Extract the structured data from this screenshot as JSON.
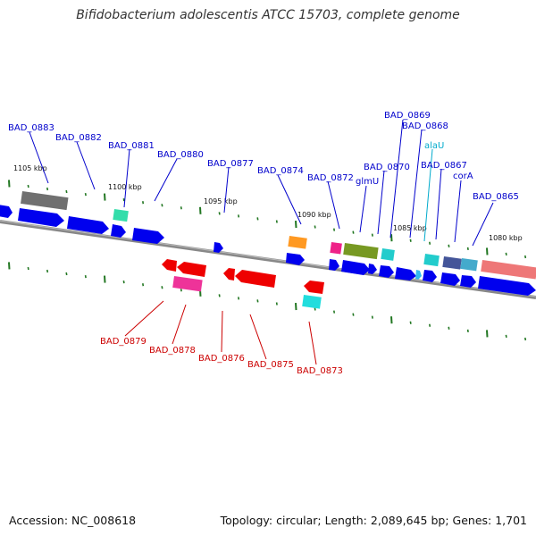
{
  "title": "Bifidobacterium adolescentis ATCC 15703, complete genome",
  "footer": {
    "accession": "Accession: NC_008618",
    "summary": "Topology: circular; Length: 2,089,645 bp; Genes: 1,701"
  },
  "colors": {
    "forward_gene": "#0000ee",
    "reverse_gene": "#ee0000",
    "forward_label": "#0000cc",
    "reverse_label": "#cc0000",
    "rna_label": "#00aacc",
    "tick": "#227722",
    "backbone": "#888888"
  },
  "scale_labels": [
    "1105 kbp",
    "1100 kbp",
    "1095 kbp",
    "1090 kbp",
    "1085 kbp",
    "1080 kbp"
  ],
  "gene_labels": {
    "top": [
      "BAD_0883",
      "BAD_0882",
      "BAD_0881",
      "BAD_0880",
      "BAD_0877",
      "BAD_0874",
      "BAD_0872",
      "glmU",
      "BAD_0870",
      "BAD_0869",
      "BAD_0868",
      "alaU",
      "BAD_0867",
      "corA",
      "BAD_0865"
    ],
    "bottom": [
      "BAD_0879",
      "BAD_0878",
      "BAD_0876",
      "BAD_0875",
      "BAD_0873"
    ]
  }
}
